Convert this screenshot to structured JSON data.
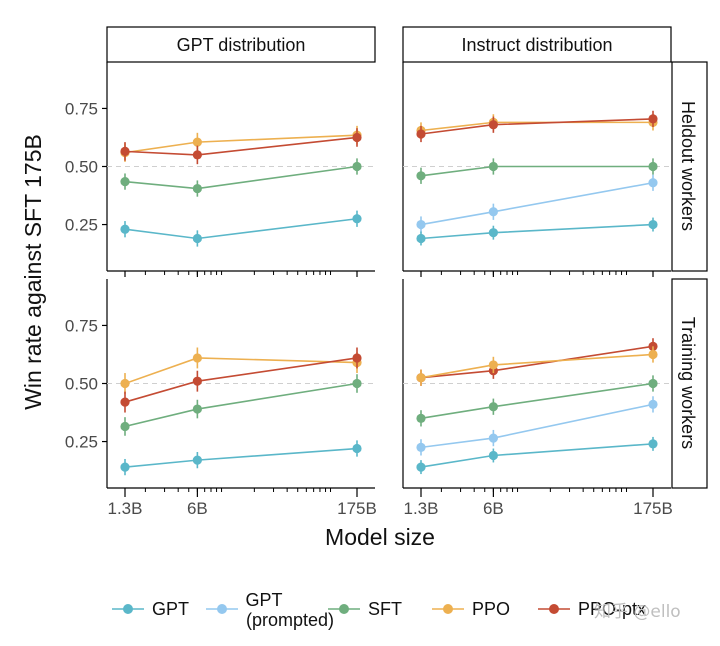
{
  "chart_data": {
    "type": "line",
    "ylabel": "Win rate against SFT 175B",
    "xlabel": "Model size",
    "x": [
      "1.3B",
      "6B",
      "175B"
    ],
    "x_params_billions": [
      1.3,
      6,
      175
    ],
    "x_scale": "log",
    "ylim": [
      0.05,
      0.95
    ],
    "yticks": [
      0.25,
      0.5,
      0.75
    ],
    "ytick_labels": [
      "0.25",
      "0.50",
      "0.75"
    ],
    "reference_line": 0.5,
    "columns": [
      "GPT distribution",
      "Instruct distribution"
    ],
    "rows": [
      "Heldout workers",
      "Training workers"
    ],
    "colors": {
      "GPT": "#5ab7c9",
      "GPT (prompted)": "#94c8ef",
      "SFT": "#6fae7e",
      "PPO": "#edb050",
      "PPO-ptx": "#c44b33"
    },
    "legend": [
      {
        "key": "GPT",
        "lines": [
          "GPT"
        ]
      },
      {
        "key": "GPT (prompted)",
        "lines": [
          "GPT",
          "(prompted)"
        ]
      },
      {
        "key": "SFT",
        "lines": [
          "SFT"
        ]
      },
      {
        "key": "PPO",
        "lines": [
          "PPO"
        ]
      },
      {
        "key": "PPO-ptx",
        "lines": [
          "PPO-ptx"
        ]
      }
    ],
    "panels": [
      {
        "row": 0,
        "col": 0,
        "series": [
          {
            "name": "PPO",
            "values": [
              0.56,
              0.605,
              0.635
            ],
            "err": 0.04
          },
          {
            "name": "PPO-ptx",
            "values": [
              0.565,
              0.55,
              0.625
            ],
            "err": 0.04
          },
          {
            "name": "SFT",
            "values": [
              0.435,
              0.405,
              0.5
            ],
            "err": 0.035
          },
          {
            "name": "GPT",
            "values": [
              0.23,
              0.19,
              0.275
            ],
            "err": 0.035
          }
        ]
      },
      {
        "row": 0,
        "col": 1,
        "series": [
          {
            "name": "PPO",
            "values": [
              0.655,
              0.69,
              0.69
            ],
            "err": 0.035
          },
          {
            "name": "PPO-ptx",
            "values": [
              0.64,
              0.68,
              0.705
            ],
            "err": 0.035
          },
          {
            "name": "SFT",
            "values": [
              0.46,
              0.5,
              0.5
            ],
            "err": 0.035
          },
          {
            "name": "GPT (prompted)",
            "values": [
              0.25,
              0.305,
              0.43
            ],
            "err": 0.035
          },
          {
            "name": "GPT",
            "values": [
              0.19,
              0.215,
              0.25
            ],
            "err": 0.03
          }
        ]
      },
      {
        "row": 1,
        "col": 0,
        "series": [
          {
            "name": "PPO",
            "values": [
              0.5,
              0.61,
              0.59
            ],
            "err": 0.045
          },
          {
            "name": "PPO-ptx",
            "values": [
              0.42,
              0.51,
              0.61
            ],
            "err": 0.045
          },
          {
            "name": "SFT",
            "values": [
              0.315,
              0.39,
              0.5
            ],
            "err": 0.04
          },
          {
            "name": "GPT",
            "values": [
              0.14,
              0.17,
              0.22
            ],
            "err": 0.035
          }
        ]
      },
      {
        "row": 1,
        "col": 1,
        "series": [
          {
            "name": "PPO-ptx",
            "values": [
              0.525,
              0.555,
              0.66
            ],
            "err": 0.035
          },
          {
            "name": "PPO",
            "values": [
              0.525,
              0.58,
              0.625
            ],
            "err": 0.035
          },
          {
            "name": "SFT",
            "values": [
              0.35,
              0.4,
              0.5
            ],
            "err": 0.035
          },
          {
            "name": "GPT (prompted)",
            "values": [
              0.225,
              0.265,
              0.41
            ],
            "err": 0.035
          },
          {
            "name": "GPT",
            "values": [
              0.14,
              0.19,
              0.24
            ],
            "err": 0.03
          }
        ]
      }
    ]
  },
  "watermark": "知乎 @ello"
}
